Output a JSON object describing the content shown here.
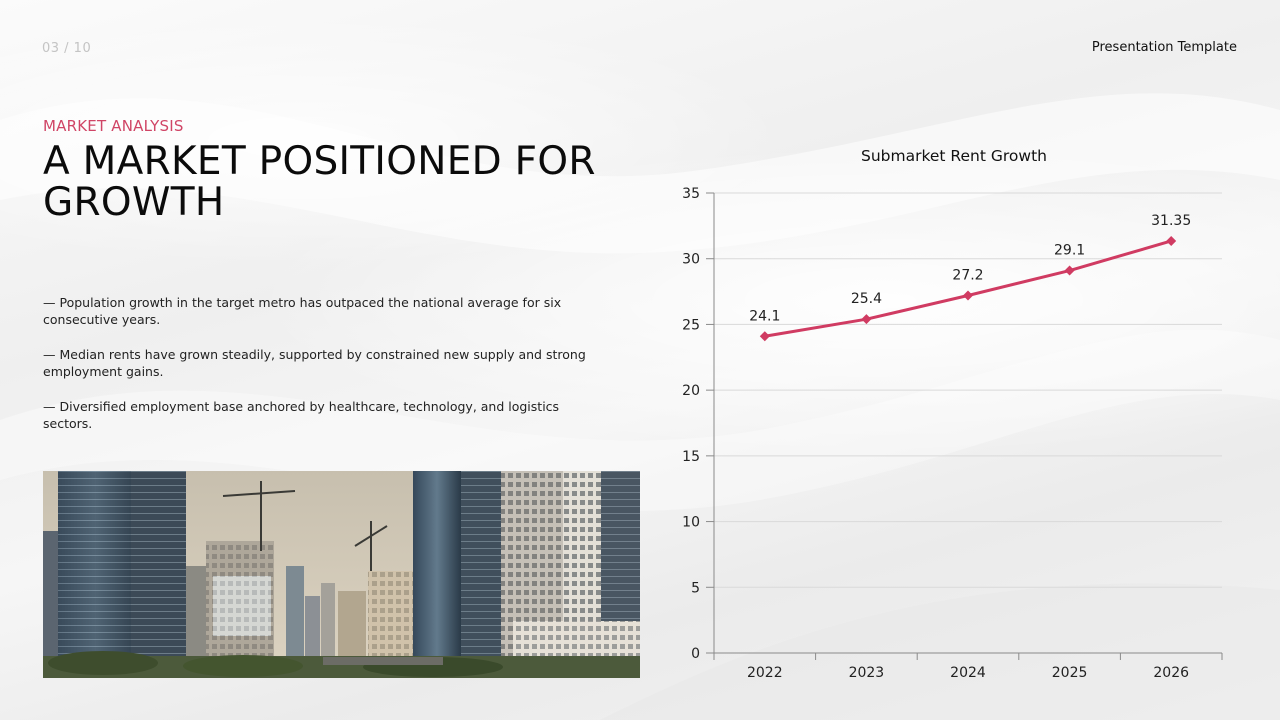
{
  "header": {
    "slide_number": "03 / 10",
    "template_label": "Presentation Template"
  },
  "content": {
    "eyebrow": "MARKET ANALYSIS",
    "title": "A MARKET POSITIONED FOR GROWTH",
    "bullets": [
      "— Population growth in the target metro has outpaced the national average for six consecutive years.",
      "— Median rents have grown steadily, supported by constrained new supply and strong employment gains.",
      "— Diversified employment base anchored by healthcare, technology, and logistics sectors."
    ]
  },
  "colors": {
    "accent": "#d03b62",
    "text": "#111111"
  },
  "chart_data": {
    "type": "line",
    "title": "Submarket Rent Growth",
    "categories": [
      "2022",
      "2023",
      "2024",
      "2025",
      "2026"
    ],
    "values": [
      24.1,
      25.4,
      27.2,
      29.1,
      31.35
    ],
    "data_labels": [
      "24.1",
      "25.4",
      "27.2",
      "29.1",
      "31.35"
    ],
    "ylim": [
      0,
      35
    ],
    "yticks": [
      0,
      5,
      10,
      15,
      20,
      25,
      30,
      35
    ],
    "grid": true,
    "marker": "diamond",
    "color": "#d03b62"
  }
}
